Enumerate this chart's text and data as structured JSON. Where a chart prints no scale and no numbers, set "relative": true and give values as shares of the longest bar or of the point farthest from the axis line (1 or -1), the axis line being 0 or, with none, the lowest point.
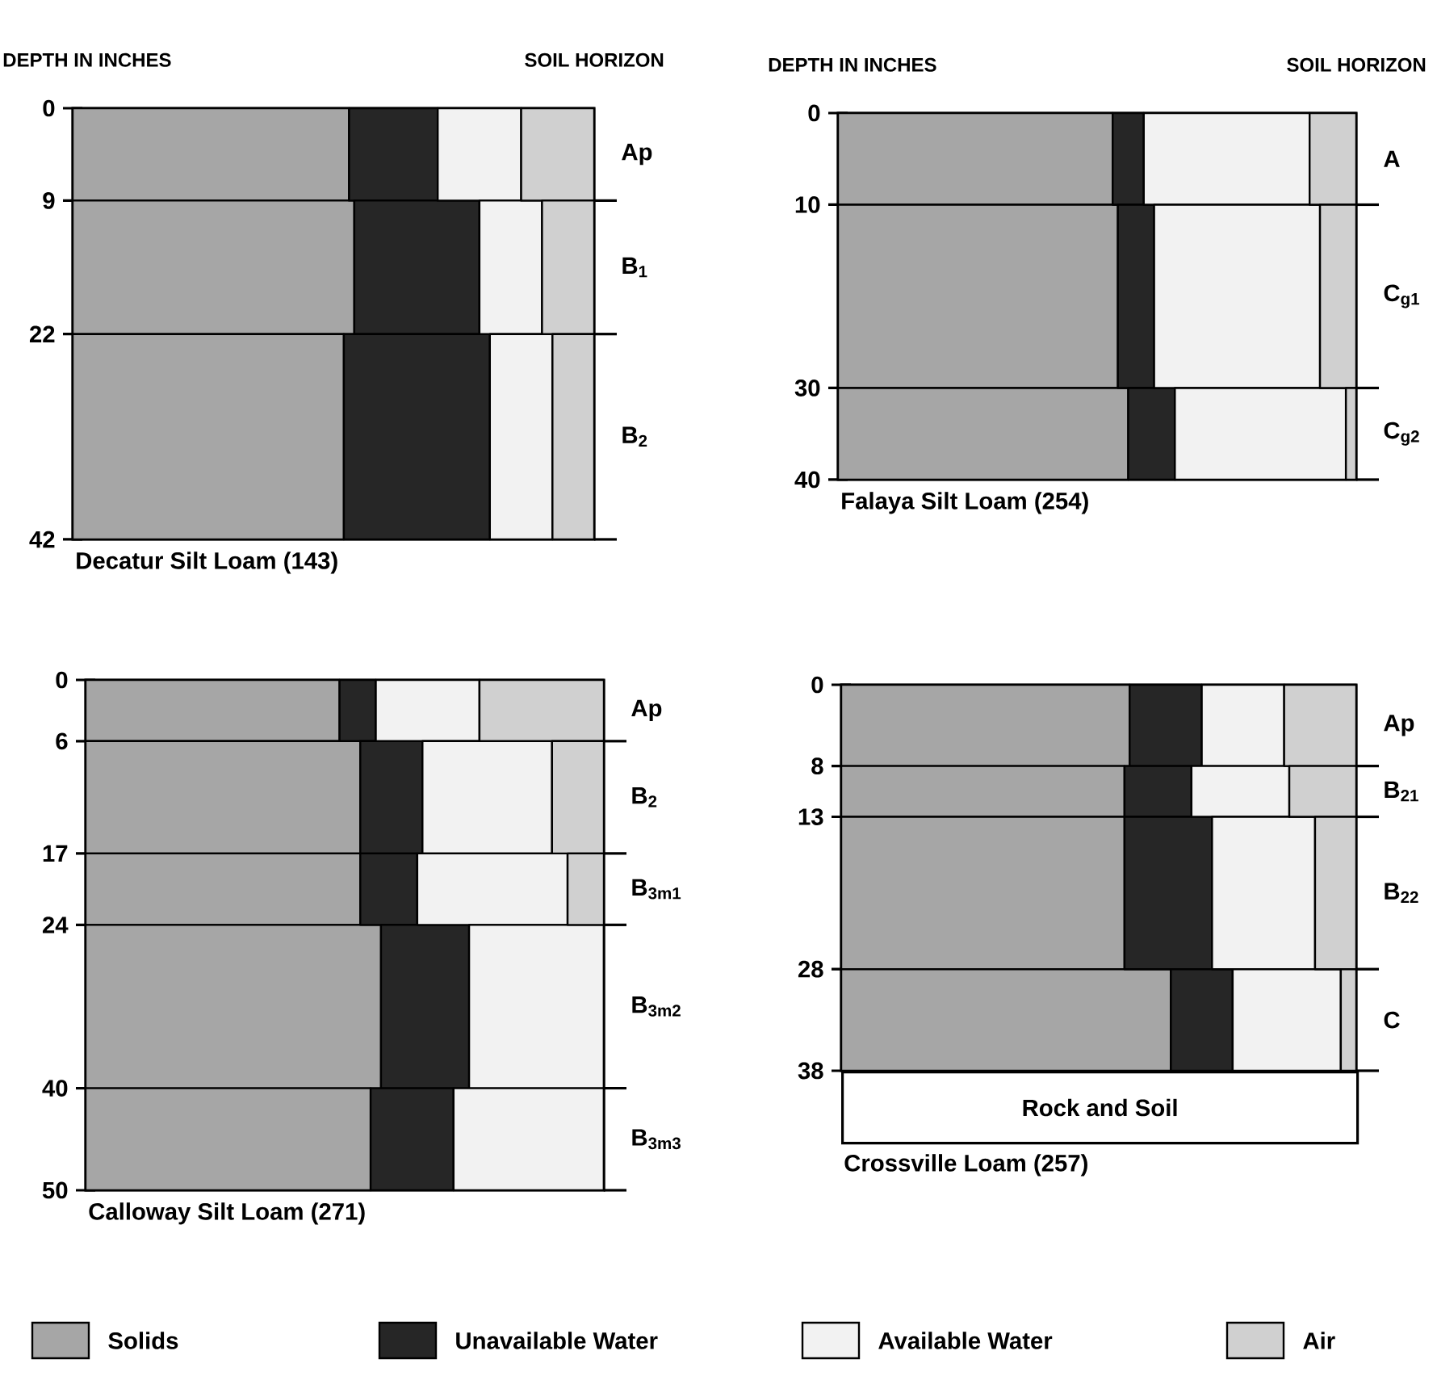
{
  "chart_data": [
    {
      "type": "bar",
      "orientation": "horizontal",
      "stacked": true,
      "relative": true,
      "title": "Decatur Silt Loam (143)",
      "ylabel": "DEPTH IN INCHES",
      "y2label": "SOIL HORIZON",
      "legend": "bottom",
      "x": [
        4.5,
        15.5,
        32
      ],
      "ylim": [
        42,
        0
      ],
      "yticks": [
        0,
        9,
        22,
        42
      ],
      "annotations": [
        "Ap",
        "B$_{1}$",
        "B$_{2}$"
      ],
      "series": [
        {
          "name": "Solids",
          "color": "#a6a6a6",
          "values": [
            0.53,
            0.54,
            0.52
          ]
        },
        {
          "name": "Unavailable Water",
          "color": "#262626",
          "values": [
            0.17,
            0.24,
            0.28
          ]
        },
        {
          "name": "Available Water",
          "color": "#f2f2f2",
          "values": [
            0.16,
            0.12,
            0.12
          ]
        },
        {
          "name": "Air",
          "color": "#d0d0d0",
          "values": [
            0.14,
            0.1,
            0.08
          ]
        }
      ]
    },
    {
      "type": "bar",
      "orientation": "horizontal",
      "stacked": true,
      "relative": true,
      "title": "Falaya Silt Loam (254)",
      "ylabel": "DEPTH IN INCHES",
      "y2label": "SOIL HORIZON",
      "x": [
        5,
        20,
        35
      ],
      "ylim": [
        40,
        0
      ],
      "yticks": [
        0,
        10,
        30,
        40
      ],
      "annotations": [
        "A",
        "C$_{g1}$",
        "C$_{g2}$"
      ],
      "series": [
        {
          "color": "#a6a6a6",
          "values": [
            0.53,
            0.54,
            0.56
          ]
        },
        {
          "color": "#262626",
          "values": [
            0.06,
            0.07,
            0.09
          ]
        },
        {
          "color": "#f2f2f2",
          "values": [
            0.32,
            0.32,
            0.33
          ]
        },
        {
          "color": "#d0d0d0",
          "values": [
            0.09,
            0.07,
            0.02
          ]
        }
      ]
    },
    {
      "type": "bar",
      "orientation": "horizontal",
      "stacked": true,
      "relative": true,
      "title": "Calloway Silt Loam (271)",
      "x": [
        3,
        11.5,
        20.5,
        32,
        45
      ],
      "ylim": [
        50,
        0
      ],
      "yticks": [
        0,
        6,
        17,
        24,
        40,
        50
      ],
      "annotations": [
        "Ap",
        "B$_{2}$",
        "B$_{3m1}$",
        "B$_{3m2}$",
        "B$_{3m3}$"
      ],
      "series": [
        {
          "color": "#a6a6a6",
          "values": [
            0.49,
            0.53,
            0.53,
            0.57,
            0.55
          ]
        },
        {
          "color": "#262626",
          "values": [
            0.07,
            0.12,
            0.11,
            0.17,
            0.16
          ]
        },
        {
          "color": "#f2f2f2",
          "values": [
            0.2,
            0.25,
            0.29,
            0.26,
            0.29
          ]
        },
        {
          "color": "#d0d0d0",
          "values": [
            0.24,
            0.1,
            0.07,
            0,
            0
          ]
        }
      ]
    },
    {
      "type": "bar",
      "orientation": "horizontal",
      "stacked": true,
      "relative": true,
      "title": "Crossville Loam (257)",
      "x": [
        4,
        10.5,
        20.5,
        33
      ],
      "ylim": [
        38,
        0
      ],
      "yticks": [
        0,
        8,
        13,
        28,
        38
      ],
      "annotations": [
        "Ap",
        "B$_{21}$",
        "B$_{22}$",
        "C",
        "Rock and Soil"
      ],
      "series": [
        {
          "color": "#a6a6a6",
          "values": [
            0.56,
            0.55,
            0.55,
            0.64
          ]
        },
        {
          "color": "#262626",
          "values": [
            0.14,
            0.13,
            0.17,
            0.12
          ]
        },
        {
          "color": "#f2f2f2",
          "values": [
            0.16,
            0.19,
            0.2,
            0.21
          ]
        },
        {
          "color": "#d0d0d0",
          "values": [
            0.14,
            0.13,
            0.08,
            0.03
          ]
        }
      ]
    }
  ]
}
